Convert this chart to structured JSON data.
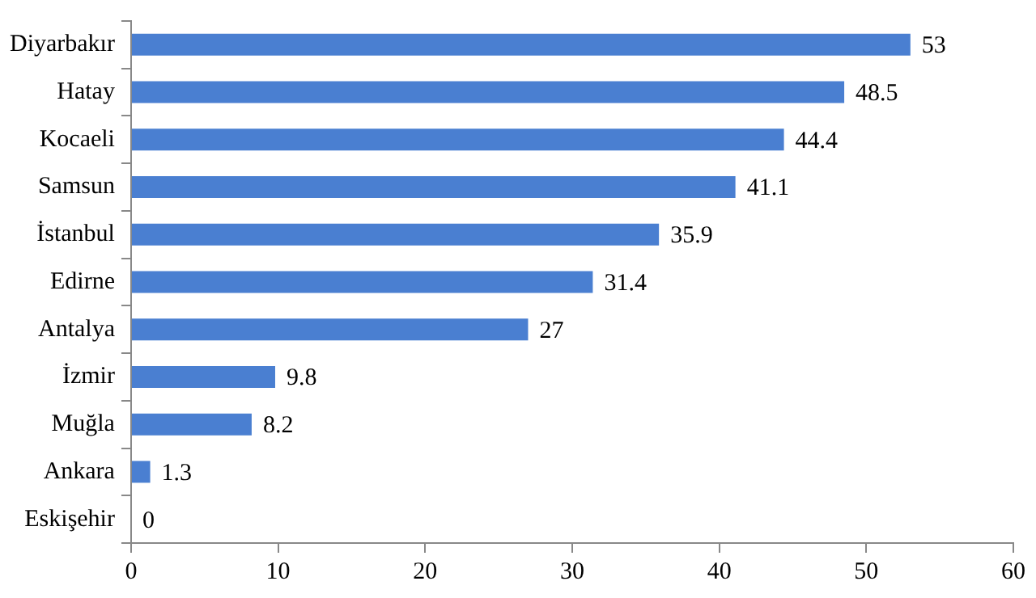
{
  "chart_data": {
    "type": "bar",
    "orientation": "horizontal",
    "categories": [
      "Diyarbakır",
      "Hatay",
      "Kocaeli",
      "Samsun",
      "İstanbul",
      "Edirne",
      "Antalya",
      "İzmir",
      "Muğla",
      "Ankara",
      "Eskişehir"
    ],
    "values": [
      53,
      48.5,
      44.4,
      41.1,
      35.9,
      31.4,
      27,
      9.8,
      8.2,
      1.3,
      0
    ],
    "color": "#4a7fd1",
    "xlim": [
      0,
      60
    ],
    "xticks": [
      0,
      10,
      20,
      30,
      40,
      50,
      60
    ],
    "grid": false,
    "legend": false,
    "data_labels": true
  }
}
